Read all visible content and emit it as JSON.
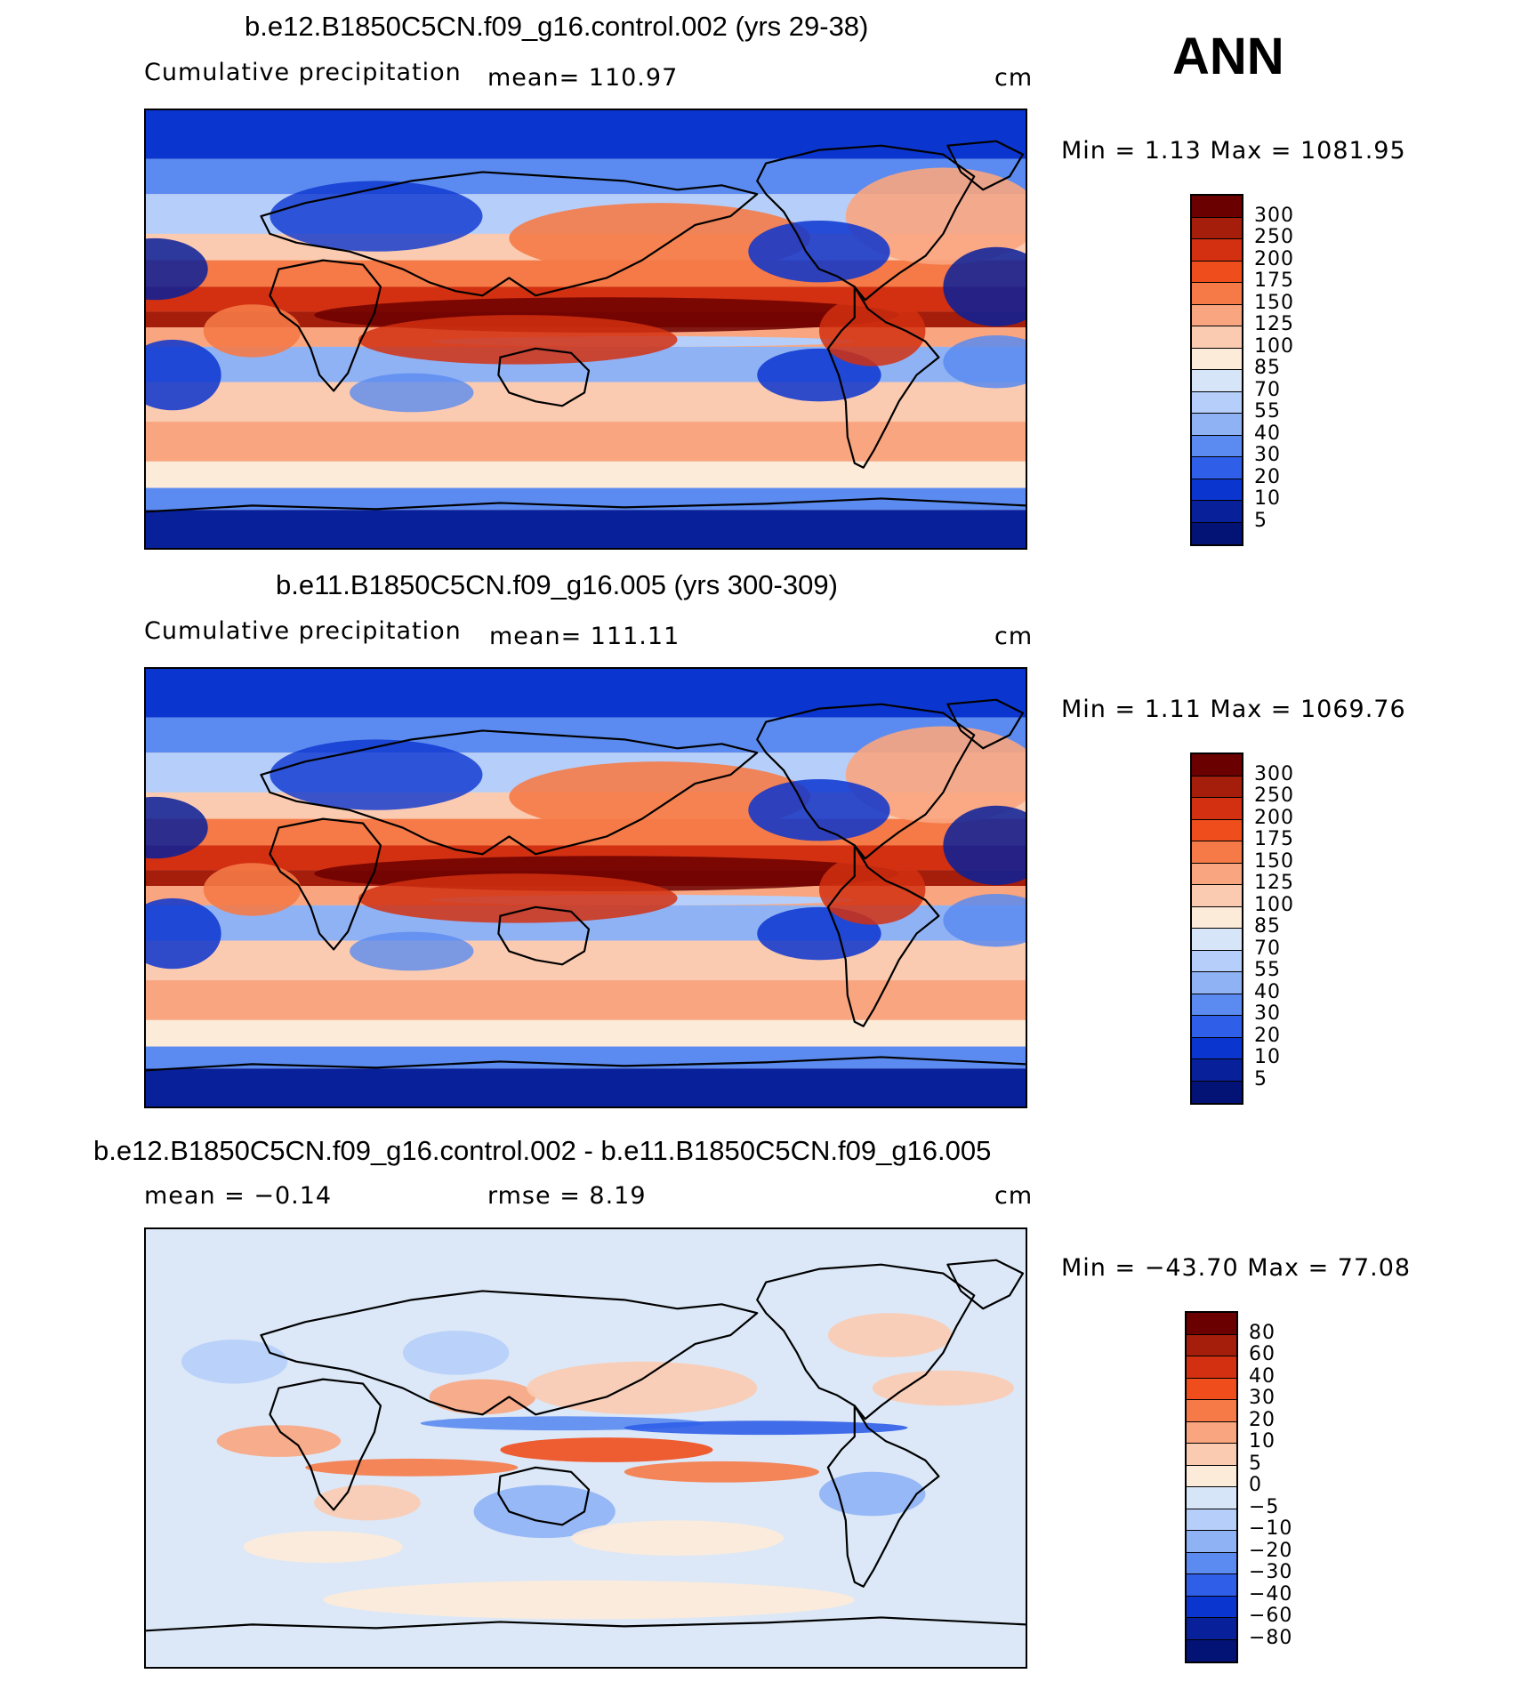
{
  "season": "ANN",
  "panels": [
    {
      "title": "b.e12.B1850C5CN.f09_g16.control.002 (yrs 29-38)",
      "left_label": "Cumulative precipitation",
      "stat_label": "mean=  110.97",
      "units": "cm",
      "minmax": "Min  =     1.13  Max  =  1081.95",
      "type": "field",
      "colorbar": [
        "300",
        "250",
        "200",
        "175",
        "150",
        "125",
        "100",
        "85",
        "70",
        "55",
        "40",
        "30",
        "20",
        "10",
        "5"
      ]
    },
    {
      "title": "b.e11.B1850C5CN.f09_g16.005 (yrs 300-309)",
      "left_label": "Cumulative precipitation",
      "stat_label": "mean=  111.11",
      "units": "cm",
      "minmax": "Min  =     1.11  Max  =  1069.76",
      "type": "field",
      "colorbar": [
        "300",
        "250",
        "200",
        "175",
        "150",
        "125",
        "100",
        "85",
        "70",
        "55",
        "40",
        "30",
        "20",
        "10",
        "5"
      ]
    },
    {
      "title": "b.e12.B1850C5CN.f09_g16.control.002 - b.e11.B1850C5CN.f09_g16.005",
      "left_label": "mean =   −0.14",
      "stat_label": "rmse =     8.19",
      "units": "cm",
      "minmax": "Min  =  −43.70  Max  =    77.08",
      "type": "diff",
      "colorbar": [
        "80",
        "60",
        "40",
        "30",
        "20",
        "10",
        "5",
        "0",
        "−5",
        "−10",
        "−20",
        "−30",
        "−40",
        "−60",
        "−80"
      ]
    }
  ],
  "colors": {
    "palette": [
      "#6b0000",
      "#a51d0b",
      "#d23010",
      "#ef4d1c",
      "#f57a47",
      "#f9a57f",
      "#fbcbb1",
      "#fdebd9",
      "#d7e5f8",
      "#b6cffa",
      "#8fb2f5",
      "#5b8bf0",
      "#2f5ee8",
      "#0b35cf",
      "#08209a",
      "#031275"
    ],
    "coastline": "#000000"
  }
}
